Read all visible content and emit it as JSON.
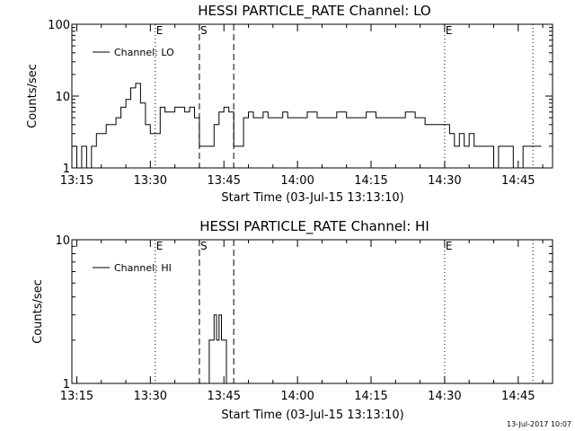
{
  "footer": {
    "timestamp": "13-Jul-2017 10:07"
  },
  "markers": [
    {
      "label": "E",
      "time": "13:31",
      "style": "dotted"
    },
    {
      "label": "S",
      "time": "13:40",
      "style": "dashed"
    },
    {
      "label": "",
      "time": "13:47",
      "style": "dashed"
    },
    {
      "label": "E",
      "time": "14:30",
      "style": "dotted"
    },
    {
      "label": "",
      "time": "14:48",
      "style": "dotted"
    }
  ],
  "chart_data": [
    {
      "type": "line",
      "title": "HESSI PARTICLE_RATE Channel: LO",
      "xlabel": "Start Time (03-Jul-15 13:13:10)",
      "ylabel": "Counts/sec",
      "yscale": "log",
      "ylim": [
        1,
        100
      ],
      "xlim": [
        "13:14",
        "14:52"
      ],
      "x_ticks": [
        "13:15",
        "13:30",
        "13:45",
        "14:00",
        "14:15",
        "14:30",
        "14:45"
      ],
      "y_ticks": [
        "1",
        "10",
        "100"
      ],
      "grid": false,
      "legend": "top-left",
      "series": [
        {
          "name": "Channel: LO",
          "x": [
            "13:14",
            "13:15",
            "13:16",
            "13:17",
            "13:18",
            "13:19",
            "13:20",
            "13:21",
            "13:22",
            "13:23",
            "13:24",
            "13:25",
            "13:26",
            "13:27",
            "13:28",
            "13:29",
            "13:30",
            "13:31",
            "13:32",
            "13:33",
            "13:34",
            "13:35",
            "13:36",
            "13:37",
            "13:38",
            "13:39",
            "13:40",
            "13:41",
            "13:42",
            "13:43",
            "13:44",
            "13:45",
            "13:46",
            "13:47",
            "13:48",
            "13:49",
            "13:50",
            "13:51",
            "13:52",
            "13:53",
            "13:54",
            "13:55",
            "13:56",
            "13:57",
            "13:58",
            "13:59",
            "14:00",
            "14:02",
            "14:04",
            "14:06",
            "14:08",
            "14:10",
            "14:12",
            "14:14",
            "14:16",
            "14:18",
            "14:20",
            "14:22",
            "14:24",
            "14:26",
            "14:28",
            "14:29",
            "14:30",
            "14:31",
            "14:32",
            "14:33",
            "14:34",
            "14:35",
            "14:36",
            "14:37",
            "14:38",
            "14:39",
            "14:40",
            "14:41",
            "14:42",
            "14:44",
            "14:46",
            "14:48",
            "14:49"
          ],
          "values": [
            2,
            1,
            2,
            1,
            2,
            3,
            3,
            4,
            4,
            5,
            7,
            9,
            13,
            15,
            8,
            4,
            3,
            3,
            7,
            6,
            6,
            7,
            7,
            6,
            7,
            5,
            2,
            2,
            2,
            4,
            6,
            7,
            6,
            2,
            2,
            5,
            6,
            5,
            5,
            6,
            5,
            5,
            5,
            6,
            5,
            5,
            5,
            6,
            5,
            5,
            6,
            5,
            5,
            6,
            5,
            5,
            5,
            6,
            5,
            4,
            4,
            4,
            4,
            3,
            2,
            3,
            2,
            3,
            2,
            2,
            2,
            2,
            1,
            2,
            2,
            1,
            2,
            2,
            2
          ]
        }
      ]
    },
    {
      "type": "line",
      "title": "HESSI PARTICLE_RATE Channel: HI",
      "xlabel": "Start Time (03-Jul-15 13:13:10)",
      "ylabel": "Counts/sec",
      "yscale": "log",
      "ylim": [
        1,
        10
      ],
      "xlim": [
        "13:14",
        "14:52"
      ],
      "x_ticks": [
        "13:15",
        "13:30",
        "13:45",
        "14:00",
        "14:15",
        "14:30",
        "14:45"
      ],
      "y_ticks": [
        "1",
        "10"
      ],
      "grid": false,
      "legend": "top-left",
      "series": [
        {
          "name": "Channel: HI",
          "x": [
            "13:41",
            "13:42",
            "13:42.5",
            "13:43",
            "13:43.5",
            "13:44",
            "13:44.5",
            "13:45",
            "13:45.5",
            "13:46"
          ],
          "values": [
            1,
            2,
            2,
            3,
            2,
            3,
            2,
            2,
            1,
            1
          ]
        }
      ]
    }
  ]
}
